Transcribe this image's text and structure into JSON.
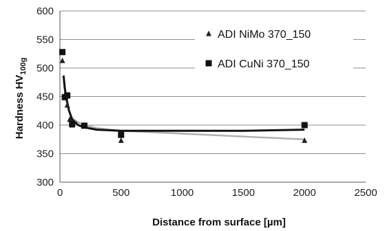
{
  "chart_data": {
    "type": "scatter",
    "xlabel": "Distance from surface [µm]",
    "ylabel": "Hardness  HV",
    "ylabel_subscript": "100g",
    "xlim": [
      0,
      2500
    ],
    "ylim": [
      300,
      600
    ],
    "xticks": [
      "0",
      "500",
      "1000",
      "1500",
      "2000",
      "2500"
    ],
    "yticks": [
      "300",
      "350",
      "400",
      "450",
      "500",
      "550",
      "600"
    ],
    "grid": "horizontal",
    "legend_position": "top-right",
    "series": [
      {
        "name": "ADI NiMo 370_150",
        "marker": "triangle",
        "color": "#222222",
        "trend_color": "#b0b0b0",
        "x": [
          20,
          40,
          60,
          80,
          100,
          200,
          500,
          2000
        ],
        "y": [
          513,
          452,
          435,
          410,
          400,
          400,
          373,
          373
        ],
        "trend_x": [
          30,
          50,
          75,
          100,
          150,
          200,
          300,
          500,
          1000,
          1500,
          2000
        ],
        "trend_y": [
          478,
          445,
          425,
          412,
          405,
          400,
          395,
          390,
          385,
          380,
          375
        ]
      },
      {
        "name": "ADI CuNi 370_150",
        "marker": "square",
        "color": "#111111",
        "trend_color": "#111111",
        "x": [
          20,
          40,
          60,
          100,
          200,
          500,
          2000
        ],
        "y": [
          528,
          449,
          452,
          402,
          399,
          383,
          400
        ],
        "trend_x": [
          30,
          40,
          50,
          75,
          100,
          150,
          200,
          300,
          500,
          1000,
          1500,
          2000
        ],
        "trend_y": [
          487,
          465,
          450,
          425,
          410,
          400,
          396,
          392,
          390,
          390,
          390,
          392
        ]
      }
    ]
  }
}
